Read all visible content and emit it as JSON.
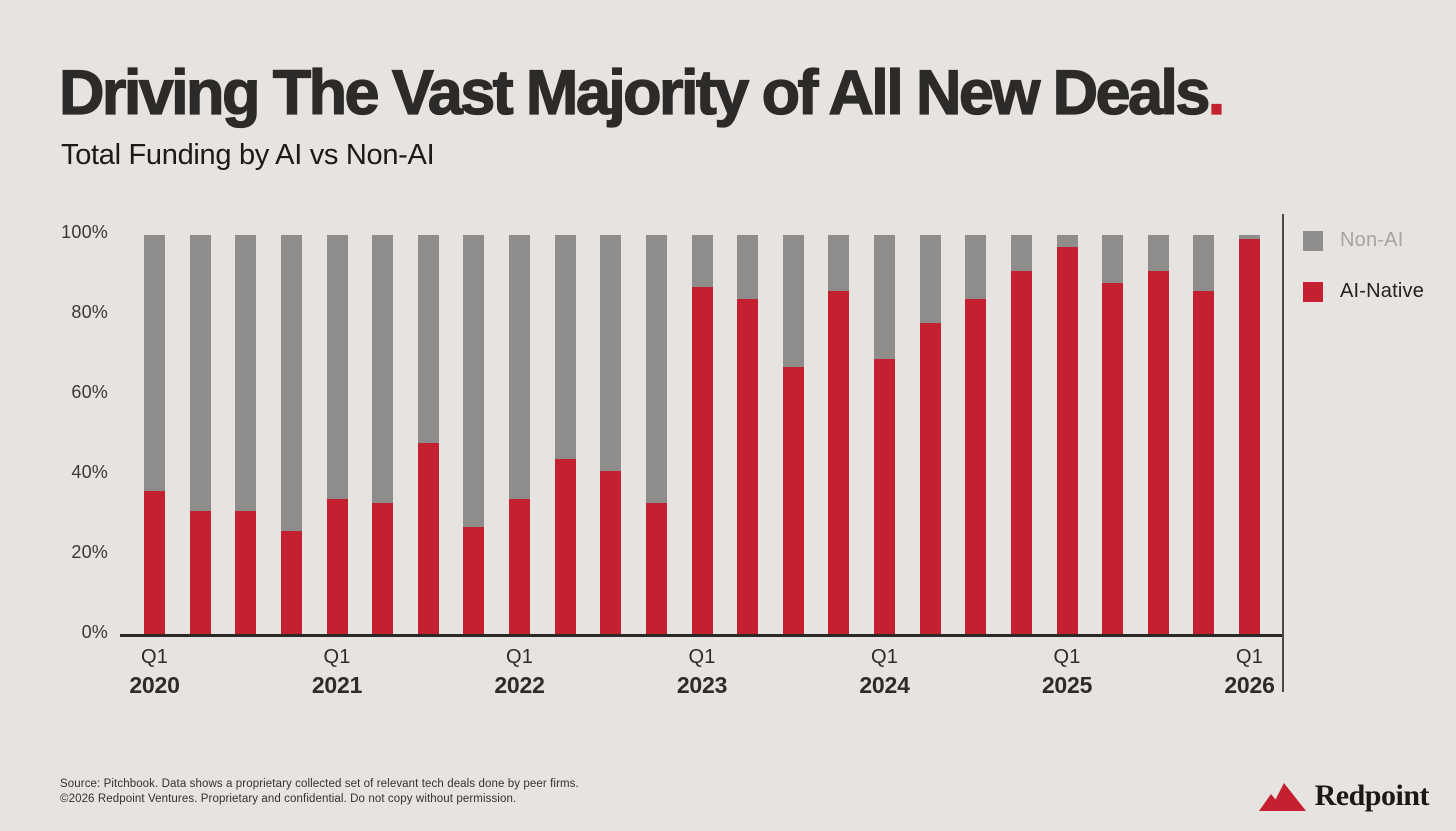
{
  "slide": {
    "title": "Driving The Vast Majority of All New Deals",
    "title_period": ".",
    "subtitle": "Total Funding by AI vs Non-AI"
  },
  "legend": {
    "items": [
      {
        "label": "Non-AI",
        "swatch_color": "#8f8d8b",
        "text_color": "#a6a4a2"
      },
      {
        "label": "AI-Native",
        "swatch_color": "#c4202f",
        "text_color": "#232220"
      }
    ]
  },
  "chart_data": {
    "type": "bar",
    "stacked": true,
    "units": "percent of total funding",
    "title": "Total Funding by AI vs Non-AI",
    "x": [
      "Q1 2020",
      "Q2 2020",
      "Q3 2020",
      "Q4 2020",
      "Q1 2021",
      "Q2 2021",
      "Q3 2021",
      "Q4 2021",
      "Q1 2022",
      "Q2 2022",
      "Q3 2022",
      "Q4 2022",
      "Q1 2023",
      "Q2 2023",
      "Q3 2023",
      "Q4 2023",
      "Q1 2024",
      "Q2 2024",
      "Q3 2024",
      "Q4 2024",
      "Q1 2025",
      "Q2 2025",
      "Q3 2025",
      "Q4 2025",
      "Q1 2026"
    ],
    "series": [
      {
        "name": "AI-Native",
        "color": "#c4202f",
        "values": [
          36,
          31,
          31,
          26,
          34,
          33,
          48,
          27,
          34,
          44,
          41,
          33,
          87,
          84,
          67,
          86,
          69,
          78,
          84,
          91,
          97,
          88,
          91,
          86,
          99
        ]
      },
      {
        "name": "Non-AI",
        "color": "#8f8d8b",
        "values": [
          64,
          69,
          69,
          74,
          66,
          67,
          52,
          73,
          66,
          56,
          59,
          67,
          13,
          16,
          33,
          14,
          31,
          22,
          16,
          9,
          3,
          12,
          9,
          14,
          1
        ]
      }
    ],
    "ylim": [
      0,
      100
    ],
    "y_ticks": [
      {
        "value": 100,
        "label": "100%"
      },
      {
        "value": 80,
        "label": "80%"
      },
      {
        "value": 60,
        "label": "60%"
      },
      {
        "value": 40,
        "label": "40%"
      },
      {
        "value": 20,
        "label": "20%"
      },
      {
        "value": 0,
        "label": "0%"
      }
    ],
    "x_tick_groups": [
      {
        "q": "Q1",
        "year": "2020"
      },
      {
        "q": "Q1",
        "year": "2021"
      },
      {
        "q": "Q1",
        "year": "2022"
      },
      {
        "q": "Q1",
        "year": "2023"
      },
      {
        "q": "Q1",
        "year": "2024"
      },
      {
        "q": "Q1",
        "year": "2025"
      },
      {
        "q": "Q1",
        "year": "2026"
      }
    ],
    "grid": false,
    "legend_position": "top-right"
  },
  "footer": {
    "line1": "Source: Pitchbook. Data shows a proprietary collected set of relevant tech deals done by peer firms.",
    "line2": "©2026 Redpoint Ventures. Proprietary and confidential. Do not copy without permission."
  },
  "logo": {
    "text": "Redpoint"
  }
}
